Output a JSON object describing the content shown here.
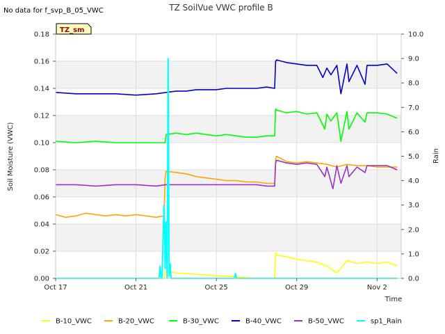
{
  "chart_data": {
    "type": "line",
    "title": "TZ SoilVue VWC profile B",
    "note": "No data for f_svp_B_05_VWC",
    "badge": "TZ_sm",
    "xlabel": "Time",
    "ylabel": "Soil Moisture (VWC)",
    "y2label": "Rain",
    "x_ticks": [
      "Oct 17",
      "Oct 21",
      "Oct 25",
      "Oct 29",
      "Nov 2"
    ],
    "x_tick_days": [
      0,
      4,
      8,
      12,
      16
    ],
    "xlim_days": [
      0,
      17.2
    ],
    "ylim": [
      0.0,
      0.18
    ],
    "y_ticks": [
      "0.00",
      "0.02",
      "0.04",
      "0.06",
      "0.08",
      "0.10",
      "0.12",
      "0.14",
      "0.16",
      "0.18"
    ],
    "y2lim": [
      0.0,
      10.0
    ],
    "y2_ticks": [
      "0.0",
      "1.0",
      "2.0",
      "3.0",
      "4.0",
      "5.0",
      "6.0",
      "7.0",
      "8.0",
      "9.0",
      "10.0"
    ],
    "grid": true,
    "legend_position": "bottom",
    "colors": {
      "B-10_VWC": "#ffff00",
      "B-20_VWC": "#ffa500",
      "B-30_VWC": "#00ff00",
      "B-40_VWC": "#0000cc",
      "B-50_VWC": "#9932cc",
      "sp1_Rain": "#00ffff"
    },
    "series": [
      {
        "name": "B-10_VWC",
        "axis": "left",
        "x": [
          0,
          5.4,
          5.45,
          5.5,
          6,
          7,
          8,
          9,
          10,
          10.9,
          10.95,
          11,
          11.5,
          12,
          12.5,
          13,
          13.5,
          14,
          14.5,
          15,
          15.5,
          16,
          16.5,
          17
        ],
        "y": [
          0.0,
          0.0,
          0.004,
          0.005,
          0.004,
          0.003,
          0.002,
          0.001,
          0.0,
          0.0,
          0.019,
          0.017,
          0.016,
          0.014,
          0.013,
          0.012,
          0.009,
          0.004,
          0.013,
          0.011,
          0.012,
          0.011,
          0.012,
          0.009
        ]
      },
      {
        "name": "B-20_VWC",
        "axis": "left",
        "x": [
          0,
          0.5,
          1,
          1.5,
          2,
          2.5,
          3,
          3.5,
          4,
          4.5,
          5,
          5.4,
          5.45,
          5.5,
          6,
          6.5,
          7,
          7.5,
          8,
          8.5,
          9,
          9.5,
          10,
          10.5,
          10.9,
          10.95,
          11,
          11.5,
          12,
          12.5,
          13,
          13.5,
          14,
          14.5,
          15,
          15.5,
          16,
          16.5,
          17
        ],
        "y": [
          0.047,
          0.045,
          0.046,
          0.048,
          0.047,
          0.046,
          0.047,
          0.046,
          0.047,
          0.046,
          0.045,
          0.046,
          0.074,
          0.079,
          0.078,
          0.077,
          0.075,
          0.074,
          0.073,
          0.072,
          0.072,
          0.071,
          0.071,
          0.07,
          0.07,
          0.088,
          0.09,
          0.086,
          0.085,
          0.086,
          0.085,
          0.084,
          0.082,
          0.084,
          0.083,
          0.083,
          0.082,
          0.082,
          0.082
        ]
      },
      {
        "name": "B-30_VWC",
        "axis": "left",
        "x": [
          0,
          1,
          2,
          3,
          4,
          5,
          5.45,
          5.5,
          6,
          6.5,
          7,
          7.5,
          8,
          8.5,
          9,
          9.5,
          10,
          10.5,
          10.9,
          10.95,
          11,
          11.5,
          12,
          12.5,
          13,
          13.4,
          13.5,
          13.7,
          14,
          14.2,
          14.5,
          14.6,
          15,
          15.4,
          15.5,
          16,
          16.5,
          17
        ],
        "y": [
          0.101,
          0.1,
          0.101,
          0.1,
          0.1,
          0.1,
          0.1,
          0.106,
          0.107,
          0.106,
          0.107,
          0.106,
          0.105,
          0.106,
          0.105,
          0.104,
          0.104,
          0.105,
          0.105,
          0.125,
          0.124,
          0.122,
          0.123,
          0.121,
          0.122,
          0.11,
          0.121,
          0.116,
          0.122,
          0.101,
          0.123,
          0.11,
          0.122,
          0.115,
          0.122,
          0.122,
          0.121,
          0.118
        ]
      },
      {
        "name": "B-40_VWC",
        "axis": "left",
        "x": [
          0,
          1,
          2,
          3,
          4,
          5,
          5.5,
          6,
          6.5,
          7,
          7.5,
          8,
          8.5,
          9,
          9.5,
          10,
          10.5,
          10.9,
          10.95,
          11,
          11.5,
          12,
          12.5,
          13,
          13.3,
          13.5,
          13.7,
          14,
          14.2,
          14.5,
          14.6,
          15,
          15.4,
          15.5,
          16,
          16.5,
          17
        ],
        "y": [
          0.137,
          0.136,
          0.136,
          0.136,
          0.135,
          0.136,
          0.137,
          0.138,
          0.138,
          0.139,
          0.139,
          0.139,
          0.14,
          0.14,
          0.14,
          0.14,
          0.141,
          0.14,
          0.16,
          0.161,
          0.159,
          0.158,
          0.157,
          0.157,
          0.148,
          0.155,
          0.15,
          0.157,
          0.136,
          0.158,
          0.145,
          0.157,
          0.143,
          0.157,
          0.157,
          0.158,
          0.151
        ]
      },
      {
        "name": "B-50_VWC",
        "axis": "left",
        "x": [
          0,
          1,
          2,
          3,
          4,
          5,
          5.5,
          6,
          6.5,
          7,
          7.5,
          8,
          8.5,
          9,
          9.5,
          10,
          10.5,
          10.9,
          10.95,
          11,
          11.5,
          12,
          12.5,
          13,
          13.4,
          13.5,
          13.8,
          14,
          14.2,
          14.5,
          14.6,
          15,
          15.4,
          15.5,
          16,
          16.5,
          17
        ],
        "y": [
          0.069,
          0.069,
          0.068,
          0.069,
          0.069,
          0.068,
          0.069,
          0.069,
          0.069,
          0.069,
          0.069,
          0.069,
          0.069,
          0.069,
          0.069,
          0.069,
          0.068,
          0.068,
          0.085,
          0.087,
          0.085,
          0.084,
          0.085,
          0.084,
          0.075,
          0.082,
          0.066,
          0.083,
          0.07,
          0.083,
          0.075,
          0.082,
          0.078,
          0.083,
          0.083,
          0.083,
          0.08
        ]
      },
      {
        "name": "sp1_Rain",
        "axis": "right",
        "x": [
          0,
          5.15,
          5.2,
          5.25,
          5.3,
          5.35,
          5.4,
          5.45,
          5.5,
          5.55,
          5.6,
          5.65,
          5.7,
          5.75,
          5.8,
          5.85,
          5.9,
          8.9,
          8.95,
          9.0,
          9.05,
          17
        ],
        "y": [
          0,
          0,
          0.5,
          0,
          0,
          1.8,
          3.0,
          0.4,
          2.3,
          0,
          9.0,
          0.1,
          0.6,
          0,
          0,
          0,
          0,
          0,
          0.2,
          0,
          0,
          0
        ]
      }
    ]
  }
}
